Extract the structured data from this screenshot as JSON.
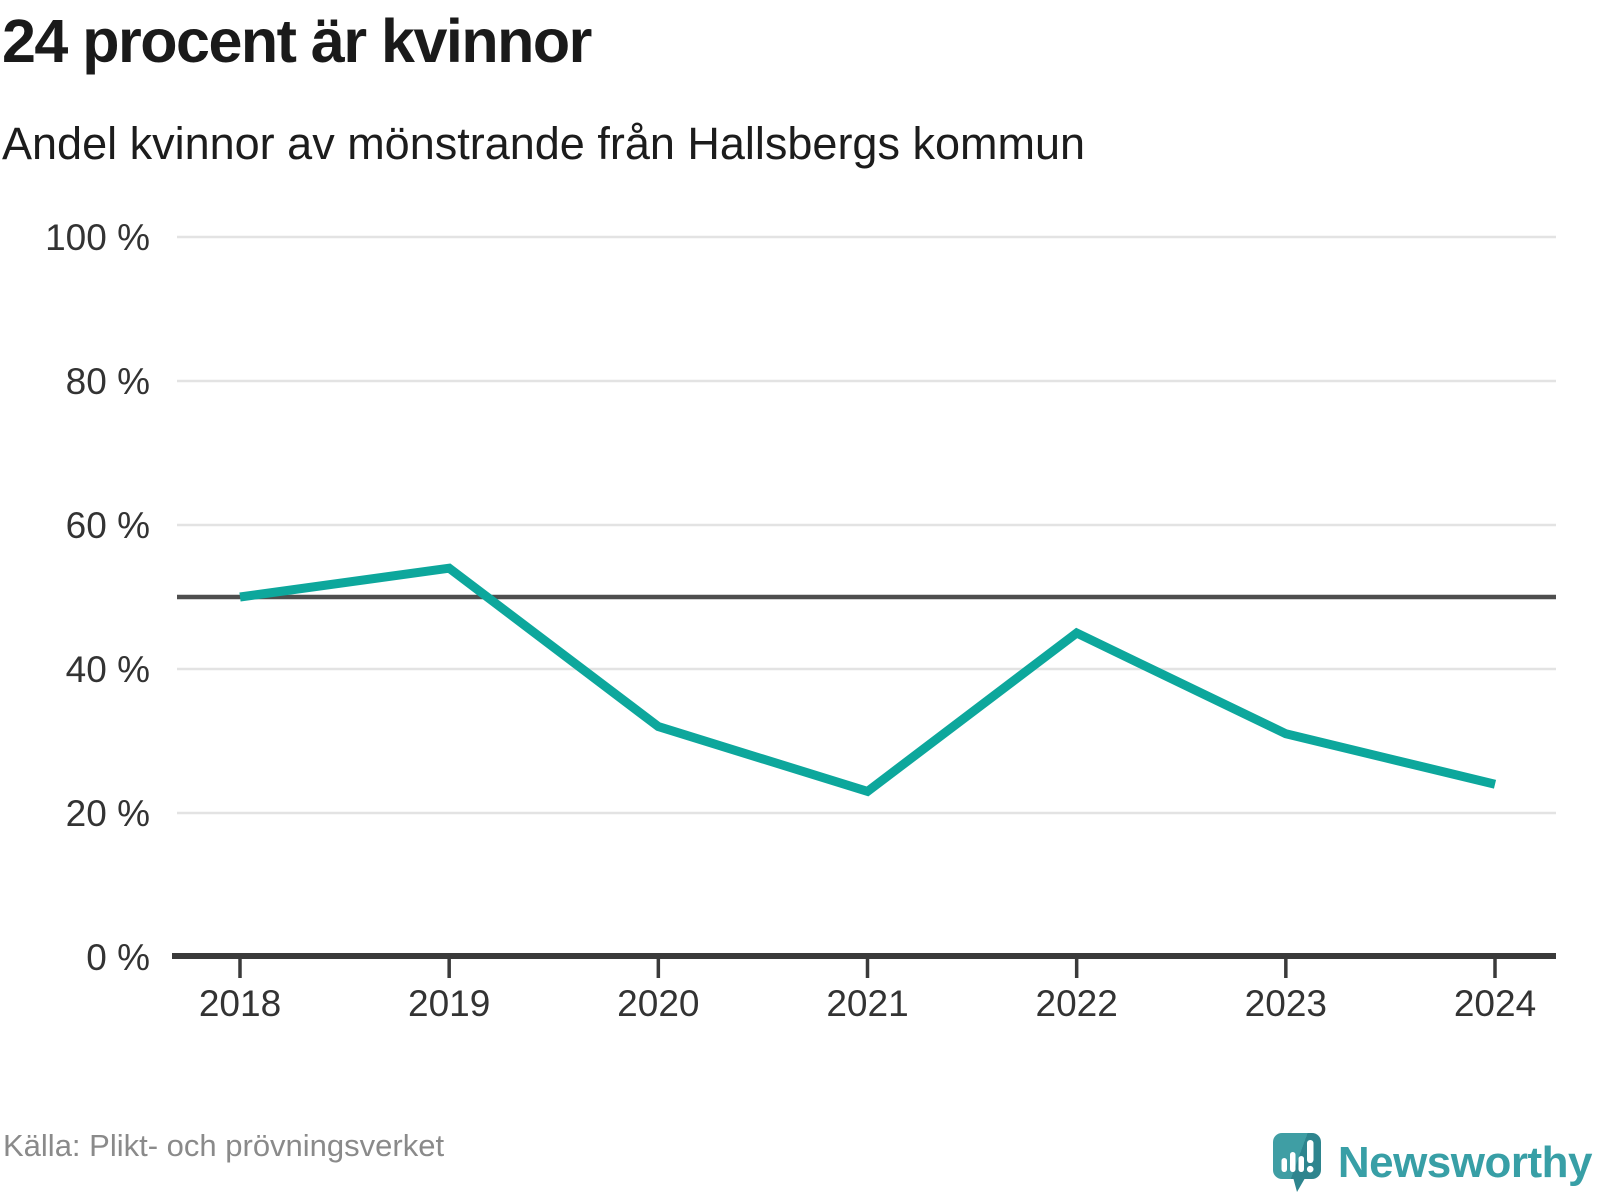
{
  "title": "24 procent är kvinnor",
  "subtitle": "Andel kvinnor av mönstrande från Hallsbergs kommun",
  "source": "Källa: Plikt- och prövningsverket",
  "logo": {
    "text": "Newsworthy",
    "icon": "newsworthy-speech-bubble-bar-chart-icon"
  },
  "colors": {
    "line": "#0DA79C",
    "grid": "#e3e3e3",
    "reference_line": "#4e4e4e",
    "axis": "#3a3a3a",
    "tick_label": "#333333",
    "title_text": "#1a1a1a",
    "source_text": "#8a8a8a",
    "logo_teal": "#3f9ea4",
    "logo_teal_dark": "#2e858e"
  },
  "chart_data": {
    "type": "line",
    "x": [
      2018,
      2019,
      2020,
      2021,
      2022,
      2023,
      2024
    ],
    "x_labels": [
      "2018",
      "2019",
      "2020",
      "2021",
      "2022",
      "2023",
      "2024"
    ],
    "series": [
      {
        "name": "Andel kvinnor av mönstrande",
        "values": [
          50,
          54,
          32,
          23,
          45,
          31,
          24
        ]
      }
    ],
    "unit": "%",
    "ylim": [
      0,
      100
    ],
    "yticks": [
      0,
      20,
      40,
      60,
      80,
      100
    ],
    "ytick_labels": [
      "0 %",
      "20 %",
      "40 %",
      "60 %",
      "80 %",
      "100 %"
    ],
    "reference_line": 50,
    "grid": "horizontal",
    "legend": "none",
    "title": "24 procent är kvinnor",
    "xlabel": "",
    "ylabel": ""
  }
}
